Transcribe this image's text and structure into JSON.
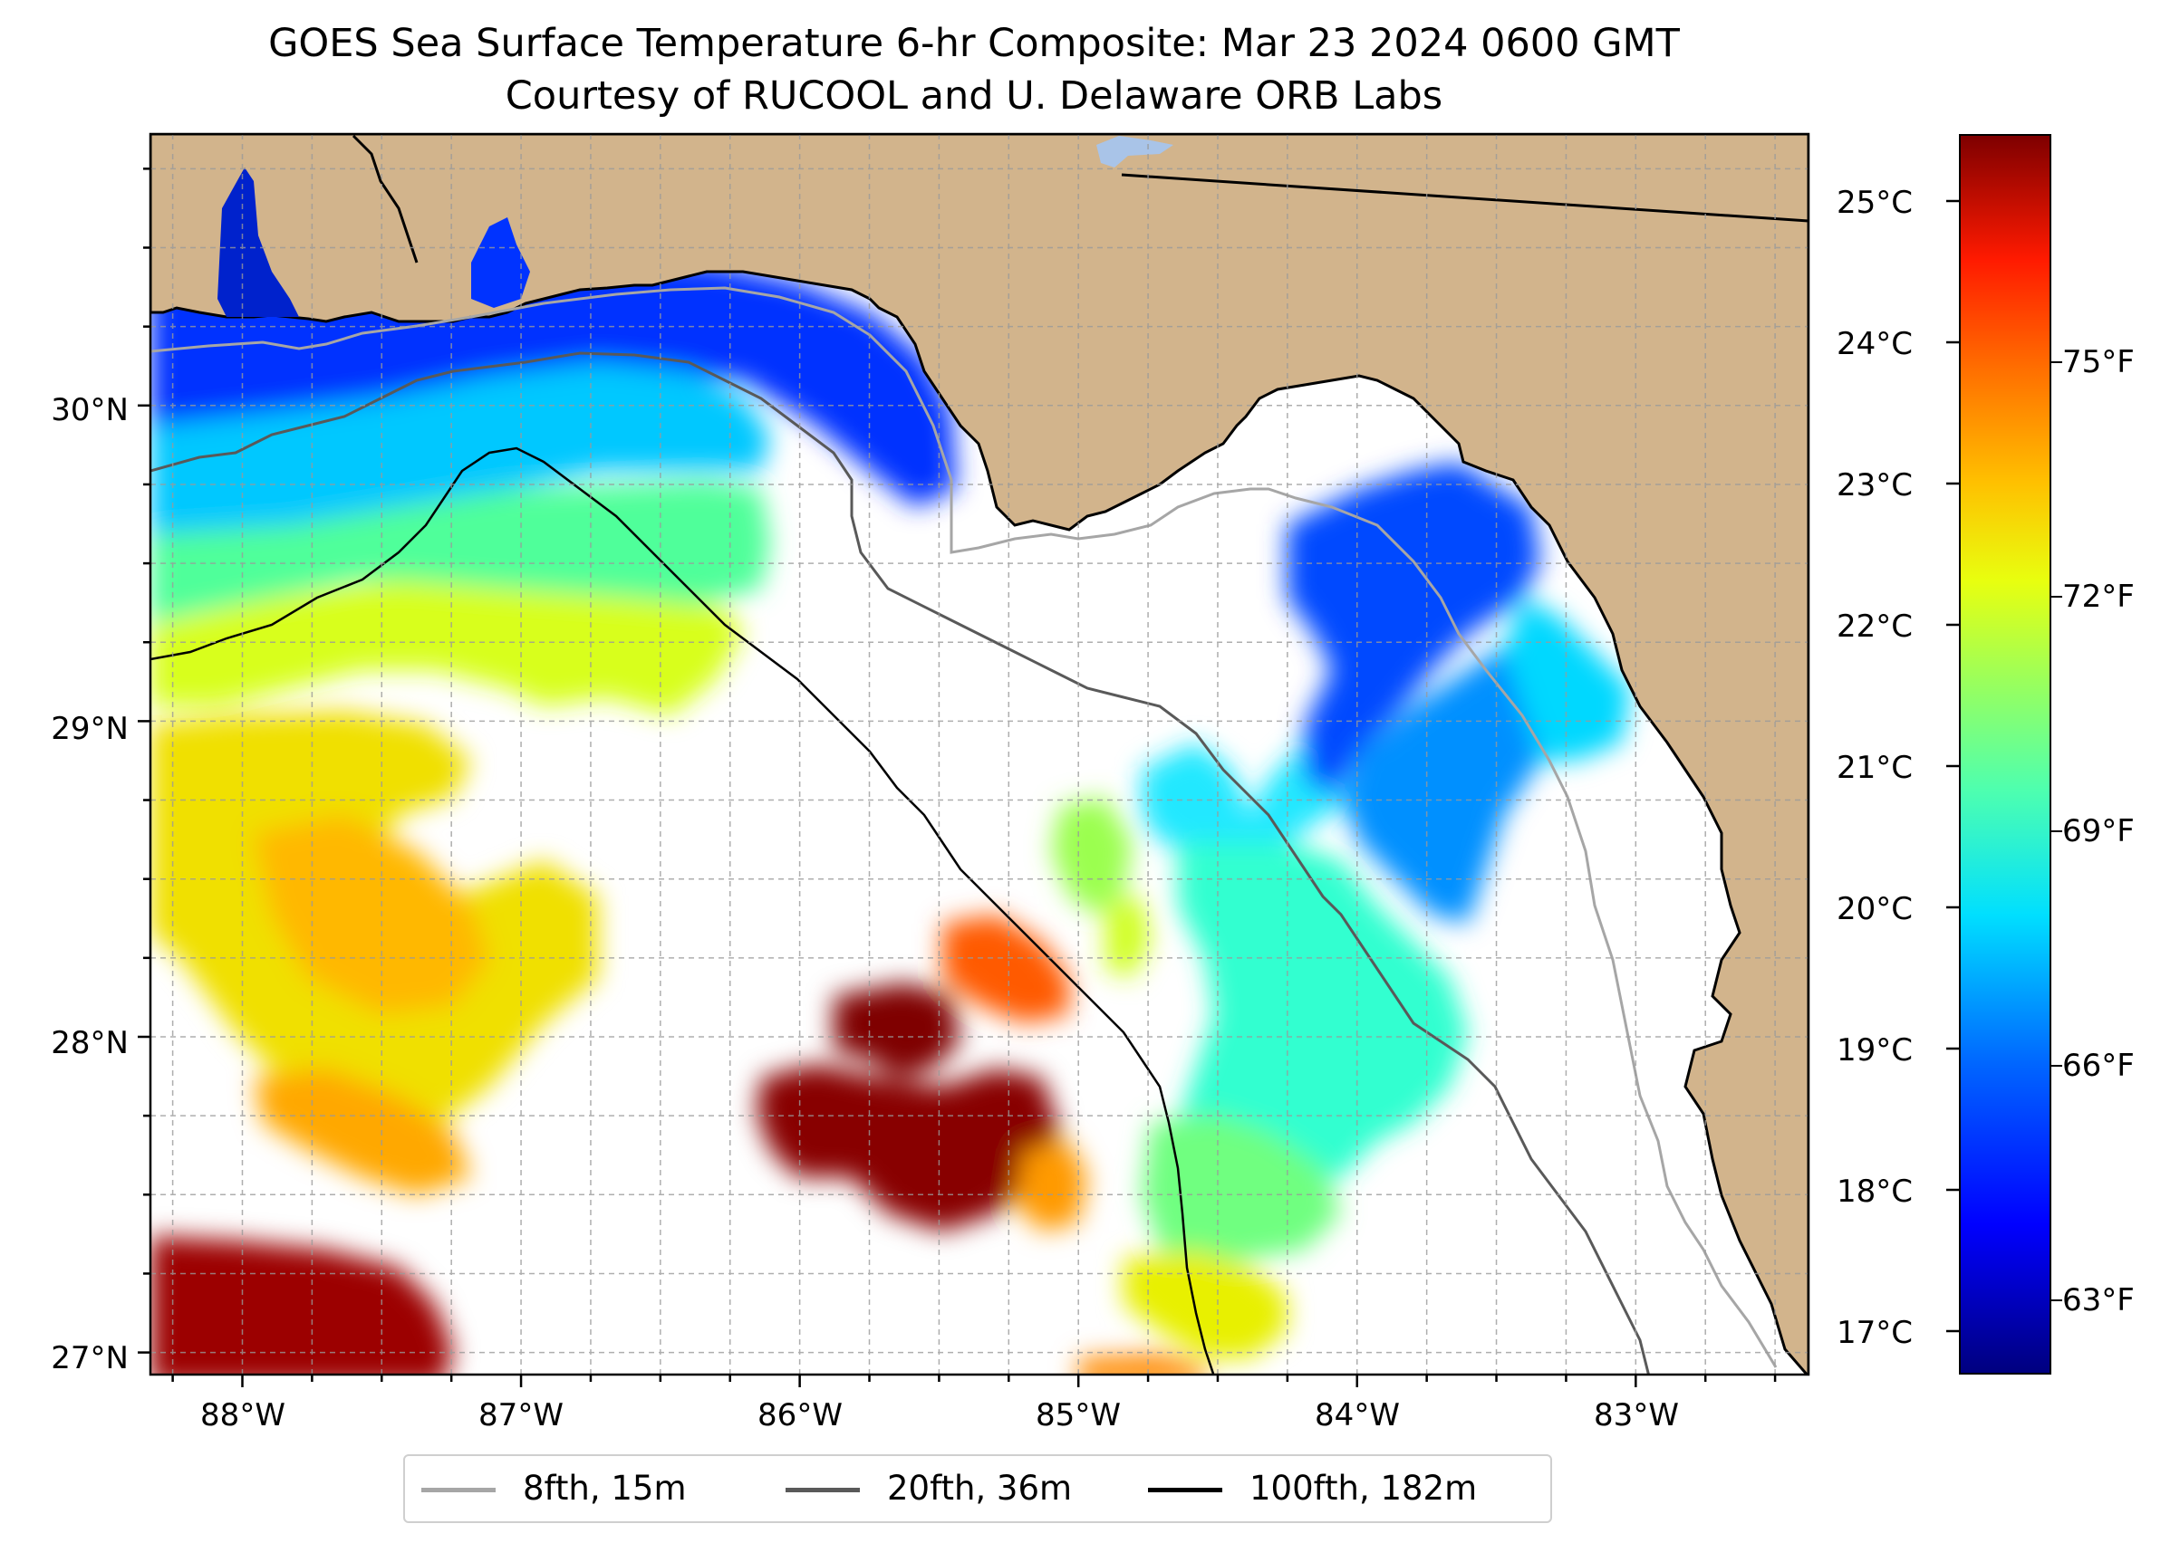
{
  "title": {
    "line1": "GOES Sea Surface Temperature 6-hr Composite: Mar 23 2024 0600 GMT",
    "line2": "Courtesy of RUCOOL and U. Delaware ORB Labs"
  },
  "map": {
    "lon_range": [
      -88.33,
      -82.38
    ],
    "lat_range": [
      26.93,
      30.86
    ],
    "land_color": "#d2b48c",
    "ocean_nodata_color": "#ffffff",
    "gridlines": "dashed, every 0.25 degree",
    "lat_labels": [
      "30°N",
      "29°N",
      "28°N",
      "27°N"
    ],
    "lon_labels": [
      "88°W",
      "87°W",
      "86°W",
      "85°W",
      "84°W",
      "83°W"
    ]
  },
  "colorbar": {
    "celsius_labels": [
      "25°C",
      "24°C",
      "23°C",
      "22°C",
      "21°C",
      "20°C",
      "19°C",
      "18°C",
      "17°C"
    ],
    "fahrenheit_labels": [
      "75°F",
      "72°F",
      "69°F",
      "66°F",
      "63°F"
    ],
    "colormap": "jet"
  },
  "legend": {
    "items": [
      {
        "label": "8fth, 15m",
        "color": "#a6a6a6"
      },
      {
        "label": "20fth, 36m",
        "color": "#595959"
      },
      {
        "label": "100fth, 182m",
        "color": "#000000"
      }
    ]
  }
}
